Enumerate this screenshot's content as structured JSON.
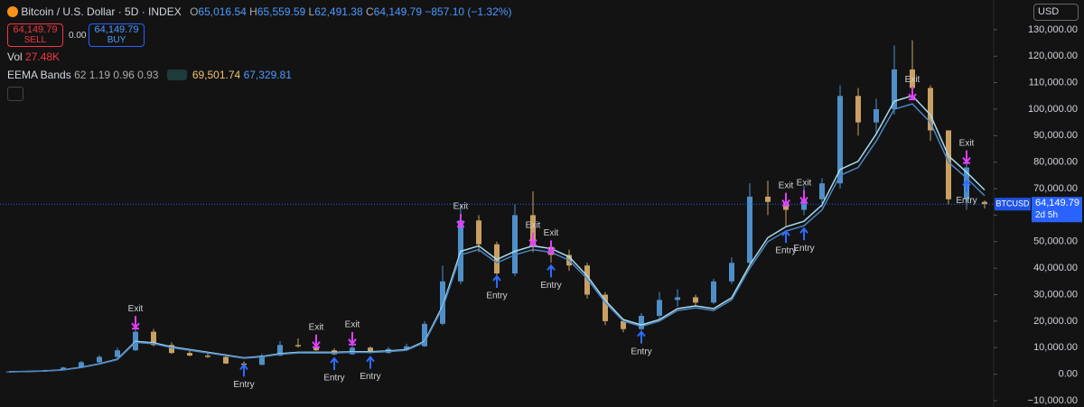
{
  "header": {
    "title": "Bitcoin / U.S. Dollar · 5D · INDEX",
    "open_label": "O",
    "open": "65,016.54",
    "high_label": "H",
    "high": "65,559.59",
    "low_label": "L",
    "low": "62,491.38",
    "close_label": "C",
    "close": "64,149.79",
    "change": "−857.10 (−1.32%)"
  },
  "trade": {
    "sell_price": "64,149.79",
    "sell": "SELL",
    "spread": "0.00",
    "buy_price": "64,149.79",
    "buy": "BUY"
  },
  "volume": {
    "label": "Vol",
    "value": "27.48K"
  },
  "indicator": {
    "name": "EEMA Bands",
    "params": "62 1.19 0.96 0.93",
    "upper": "69,501.74",
    "lower": "67,329.81"
  },
  "currency": "USD",
  "chart_data": {
    "type": "candlestick",
    "up_color": "#4f8fc7",
    "down_color": "#c9a063",
    "open": [
      900,
      1000,
      1200,
      1500,
      2500,
      4500,
      6500,
      9000,
      16000,
      11000,
      8000,
      7000,
      6500,
      4000,
      3500,
      7000,
      11000,
      10500,
      9000,
      7500,
      10000,
      8000,
      9500,
      10500,
      19000,
      35000,
      58000,
      49000,
      38000,
      60000,
      48000,
      45000,
      41000,
      30000,
      20000,
      17000,
      22000,
      28000,
      29000,
      27000,
      35000,
      42000,
      67000,
      65000,
      62000,
      66000,
      72000,
      105000,
      95000,
      100000,
      115000,
      108000,
      92000,
      66000,
      65016.54
    ],
    "high": [
      1100,
      1300,
      1700,
      2800,
      5000,
      7200,
      10000,
      19500,
      17000,
      12000,
      8800,
      7800,
      7200,
      4800,
      7800,
      12500,
      13500,
      11500,
      9800,
      10800,
      10500,
      10200,
      11500,
      20000,
      41000,
      64000,
      60000,
      50000,
      64000,
      69000,
      50000,
      47000,
      42000,
      31000,
      21000,
      23000,
      31000,
      32000,
      30000,
      36000,
      44000,
      72000,
      73000,
      67000,
      71000,
      74000,
      109000,
      108000,
      104000,
      124000,
      126000,
      109000,
      92000,
      84000,
      65559.59
    ],
    "low": [
      850,
      950,
      1150,
      1450,
      2400,
      4300,
      6200,
      8800,
      10500,
      7600,
      6700,
      6100,
      3800,
      3200,
      3400,
      6800,
      10000,
      8800,
      7200,
      7300,
      7800,
      7800,
      9200,
      10300,
      18500,
      34000,
      46000,
      36000,
      37000,
      46000,
      42000,
      39000,
      28500,
      18500,
      15800,
      16500,
      21000,
      25500,
      26000,
      26500,
      34000,
      41000,
      60000,
      56000,
      60000,
      63000,
      70000,
      90000,
      91000,
      98000,
      104000,
      88000,
      64000,
      62000,
      62491.38
    ],
    "close": [
      1000,
      1200,
      1500,
      2500,
      4500,
      6500,
      9000,
      16000,
      11000,
      8000,
      7000,
      6500,
      4000,
      3500,
      7000,
      11000,
      10500,
      9000,
      7500,
      10000,
      8000,
      9500,
      10500,
      19000,
      35000,
      58000,
      49000,
      38000,
      60000,
      48000,
      45000,
      41000,
      30000,
      20000,
      17000,
      22000,
      28000,
      29000,
      27000,
      35000,
      42000,
      67000,
      65000,
      62000,
      66000,
      72000,
      105000,
      95000,
      100000,
      115000,
      108000,
      92000,
      66000,
      78000,
      64149.79
    ],
    "bands": [
      {
        "color": "#a8dcec",
        "values": [
          927,
          1030,
          1236,
          1648,
          2575,
          3914,
          5665,
          12360,
          11845,
          10300,
          9270,
          8240,
          7210,
          6180,
          6695,
          7725,
          8240,
          8240,
          8240,
          8446,
          8446,
          8755,
          9270,
          12360,
          25750,
          46350,
          48410,
          43260,
          46350,
          48410,
          47380,
          44290,
          37080,
          27810,
          20600,
          18540,
          20600,
          24720,
          25750,
          24720,
          28840,
          41200,
          51500,
          55620,
          57680,
          63860,
          77250,
          80340,
          90640,
          103000,
          105060,
          97850,
          82400,
          76220,
          69501.74
        ]
      },
      {
        "color": "#4a86c5",
        "values": [
          900,
          1000,
          1200,
          1600,
          2500,
          3800,
          5500,
          12000,
          11500,
          10000,
          9000,
          8000,
          7000,
          6000,
          6500,
          7500,
          8000,
          8000,
          8000,
          8200,
          8200,
          8500,
          9000,
          12000,
          25000,
          45000,
          47000,
          42000,
          45000,
          47000,
          46000,
          43000,
          36000,
          27000,
          20000,
          18000,
          20000,
          24000,
          25000,
          24000,
          28000,
          40000,
          50000,
          54000,
          56000,
          62000,
          75000,
          78000,
          88000,
          100000,
          102000,
          95000,
          80000,
          74000,
          67329.81
        ]
      }
    ],
    "signals": [
      {
        "label": "Exit",
        "index": 7,
        "value": 16500
      },
      {
        "label": "Entry",
        "index": 13,
        "value": 4500
      },
      {
        "label": "Exit",
        "index": 17,
        "value": 9500
      },
      {
        "label": "Entry",
        "index": 18,
        "value": 7000
      },
      {
        "label": "Exit",
        "index": 19,
        "value": 10500
      },
      {
        "label": "Entry",
        "index": 20,
        "value": 7500
      },
      {
        "label": "Exit",
        "index": 25,
        "value": 55000
      },
      {
        "label": "Entry",
        "index": 27,
        "value": 38000
      },
      {
        "label": "Exit",
        "index": 29,
        "value": 48000
      },
      {
        "label": "Exit",
        "index": 30,
        "value": 45000
      },
      {
        "label": "Entry",
        "index": 30,
        "value": 42000
      },
      {
        "label": "Entry",
        "index": 35,
        "value": 17000
      },
      {
        "label": "Exit",
        "index": 43,
        "value": 63000
      },
      {
        "label": "Entry",
        "index": 43,
        "value": 55000
      },
      {
        "label": "Exit",
        "index": 44,
        "value": 64000
      },
      {
        "label": "Entry",
        "index": 44,
        "value": 56000
      },
      {
        "label": "Exit",
        "index": 50,
        "value": 103000
      },
      {
        "label": "Exit",
        "index": 53,
        "value": 79000
      },
      {
        "label": "Entry",
        "index": 53,
        "value": 74000
      }
    ],
    "exit_color": "#e040fb",
    "entry_color": "#2f6bff",
    "last_price": {
      "value": 64149.79,
      "label": "64,149.79"
    },
    "symbol": "BTCUSD",
    "countdown": "2d 5h",
    "ylim": [
      -12400,
      141200
    ],
    "yticks": [
      {
        "value": 130000,
        "label": "130,000.00"
      },
      {
        "value": 120000,
        "label": "120,000.00"
      },
      {
        "value": 110000,
        "label": "110,000.00"
      },
      {
        "value": 100000,
        "label": "100,000.00"
      },
      {
        "value": 90000,
        "label": "90,000.00"
      },
      {
        "value": 80000,
        "label": "80,000.00"
      },
      {
        "value": 70000,
        "label": "70,000.00"
      },
      {
        "value": 60000,
        "label": "60,000.00"
      },
      {
        "value": 50000,
        "label": "50,000.00"
      },
      {
        "value": 40000,
        "label": "40,000.00"
      },
      {
        "value": 30000,
        "label": "30,000.00"
      },
      {
        "value": 20000,
        "label": "20,000.00"
      },
      {
        "value": 10000,
        "label": "10,000.00"
      },
      {
        "value": 0,
        "label": "0.00"
      },
      {
        "value": -10000,
        "label": "−10,000.00"
      }
    ]
  }
}
